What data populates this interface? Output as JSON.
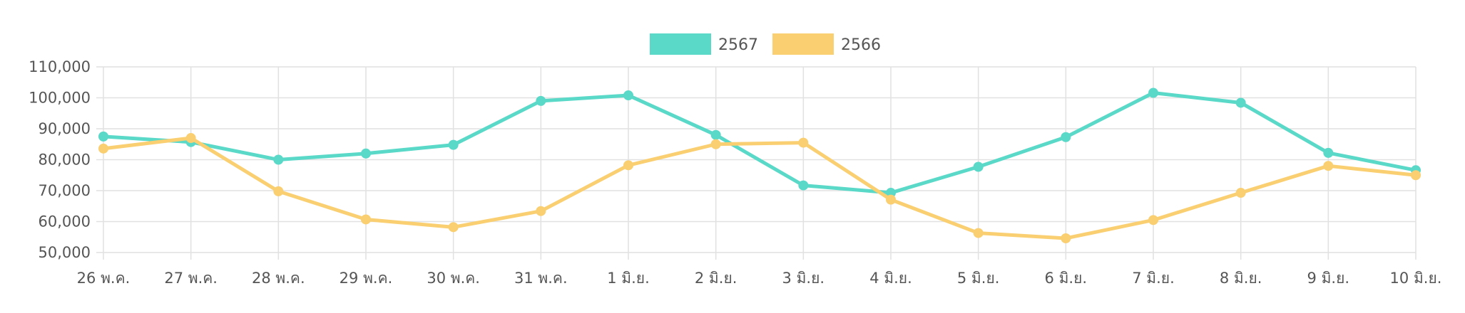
{
  "chart_data": {
    "type": "line",
    "title": "",
    "xlabel": "",
    "ylabel": "",
    "categories": [
      "26 พ.ค.",
      "27 พ.ค.",
      "28 พ.ค.",
      "29 พ.ค.",
      "30 พ.ค.",
      "31 พ.ค.",
      "1 มิ.ย.",
      "2 มิ.ย.",
      "3 มิ.ย.",
      "4 มิ.ย.",
      "5 มิ.ย.",
      "6 มิ.ย.",
      "7 มิ.ย.",
      "8 มิ.ย.",
      "9 มิ.ย.",
      "10 มิ.ย."
    ],
    "ylim": [
      50000,
      110000
    ],
    "yticks": [
      50000,
      60000,
      70000,
      80000,
      90000,
      100000,
      110000
    ],
    "ytick_labels": [
      "50,000",
      "60,000",
      "70,000",
      "80,000",
      "90,000",
      "100,000",
      "110,000"
    ],
    "grid": true,
    "legend_position": "top-center",
    "series": [
      {
        "name": "2567",
        "color": "#5ad8c8",
        "values": [
          87500,
          85700,
          80000,
          82000,
          84800,
          99000,
          100800,
          88000,
          71700,
          69300,
          77700,
          87300,
          101600,
          98400,
          82200,
          76600
        ]
      },
      {
        "name": "2566",
        "color": "#f9cf72",
        "values": [
          83600,
          87000,
          69800,
          60700,
          58200,
          63400,
          78200,
          85000,
          85500,
          67100,
          56300,
          54600,
          60500,
          69300,
          78000,
          75000
        ]
      }
    ]
  }
}
